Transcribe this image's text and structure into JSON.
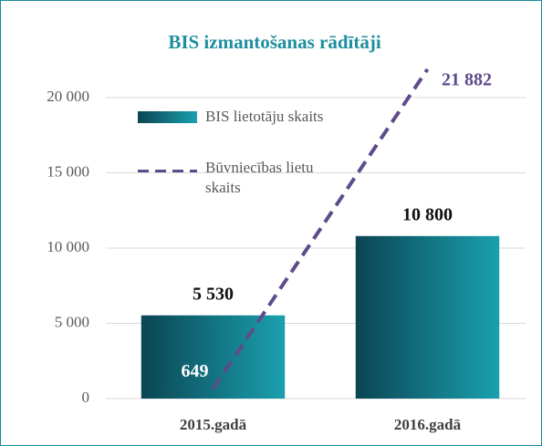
{
  "chart_data": {
    "type": "bar",
    "title": "BIS izmantošanas rādītāji",
    "categories": [
      "2015.gadā",
      "2016.gadā"
    ],
    "series": [
      {
        "name": "BIS lietotāju skaits",
        "type": "bar",
        "color": "#12808f",
        "values": [
          5530,
          10800
        ],
        "value_labels": [
          "5 530",
          "10 800"
        ]
      },
      {
        "name": "Būvniecības lietu skaits",
        "type": "line",
        "line_style": "dashed",
        "color": "#5e4b8b",
        "values": [
          649,
          21882
        ],
        "value_labels": [
          "649",
          "21 882"
        ]
      }
    ],
    "ylim": [
      0,
      22000
    ],
    "yticks": [
      0,
      {
        "value": 5000,
        "label": "5 000"
      },
      {
        "value": 10000,
        "label": "10 000"
      },
      {
        "value": 15000,
        "label": "15 000"
      },
      {
        "value": 20000,
        "label": "20 000"
      }
    ],
    "grid": true,
    "legend": "upper-left"
  }
}
